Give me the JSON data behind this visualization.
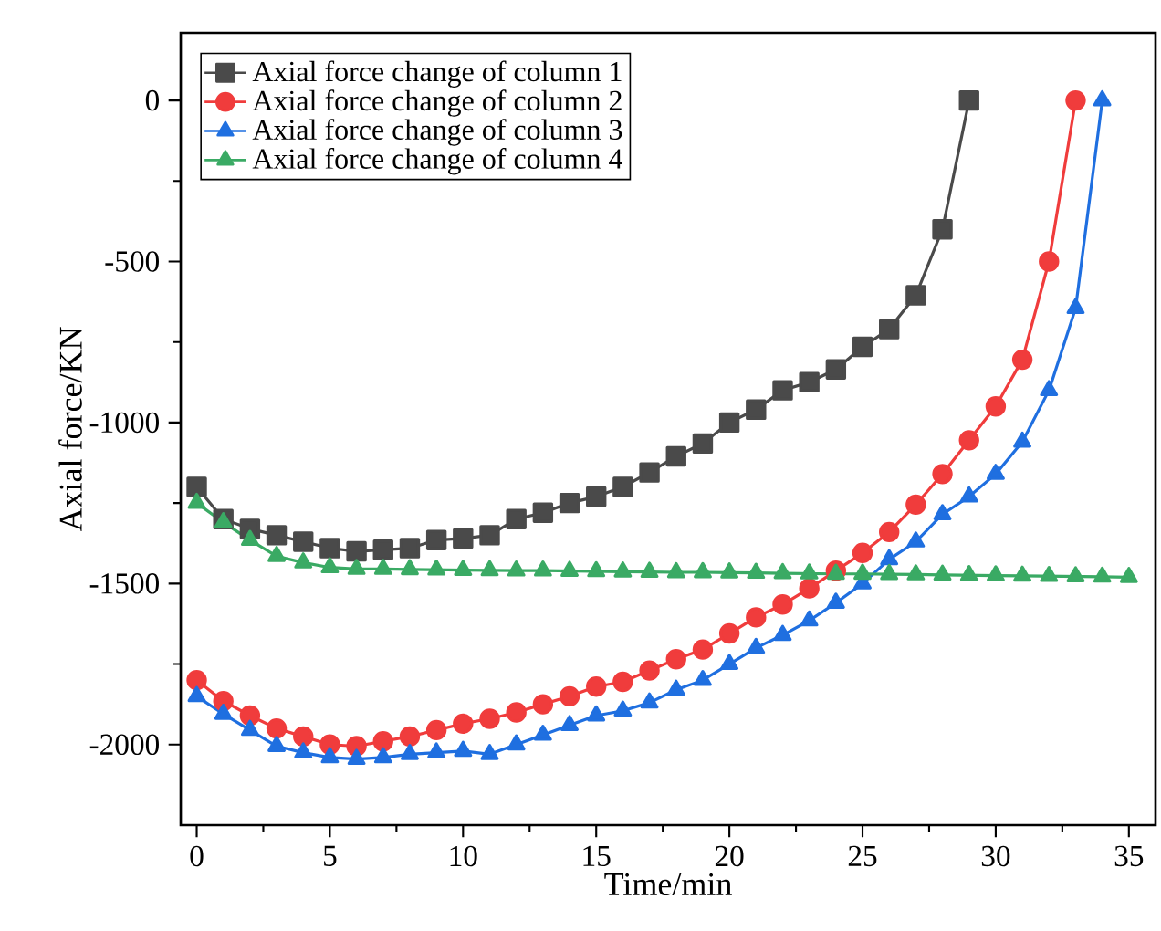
{
  "chart_data": {
    "type": "line",
    "xlabel": "Time/min",
    "ylabel": "Axial force/KN",
    "xlim": [
      -0.6,
      36
    ],
    "ylim": [
      -2250,
      210
    ],
    "xticks": [
      0,
      5,
      10,
      15,
      20,
      25,
      30,
      35
    ],
    "yticks": [
      -2000,
      -1500,
      -1000,
      -500,
      0
    ],
    "grid": false,
    "legend": "top left",
    "line_style": "solid",
    "series": [
      {
        "name": "Axial force change of column 1",
        "color": "#4a4a4a",
        "marker": "square",
        "x": [
          0,
          1,
          2,
          3,
          4,
          5,
          6,
          7,
          8,
          9,
          10,
          11,
          12,
          13,
          14,
          15,
          16,
          17,
          18,
          19,
          20,
          21,
          22,
          23,
          24,
          25,
          26,
          27,
          28,
          29
        ],
        "values": [
          -1200,
          -1300,
          -1330,
          -1350,
          -1370,
          -1390,
          -1400,
          -1395,
          -1390,
          -1365,
          -1360,
          -1350,
          -1300,
          -1280,
          -1250,
          -1230,
          -1200,
          -1155,
          -1105,
          -1065,
          -1000,
          -960,
          -900,
          -875,
          -835,
          -765,
          -710,
          -605,
          -400,
          0
        ]
      },
      {
        "name": "Axial force change of column 2",
        "color": "#f03c3c",
        "marker": "circle",
        "x": [
          0,
          1,
          2,
          3,
          4,
          5,
          6,
          7,
          8,
          9,
          10,
          11,
          12,
          13,
          14,
          15,
          16,
          17,
          18,
          19,
          20,
          21,
          22,
          23,
          24,
          25,
          26,
          27,
          28,
          29,
          30,
          31,
          32,
          33
        ],
        "values": [
          -1800,
          -1865,
          -1910,
          -1950,
          -1975,
          -2000,
          -2005,
          -1990,
          -1975,
          -1955,
          -1935,
          -1920,
          -1900,
          -1875,
          -1850,
          -1820,
          -1805,
          -1770,
          -1735,
          -1705,
          -1655,
          -1605,
          -1565,
          -1515,
          -1460,
          -1405,
          -1340,
          -1255,
          -1160,
          -1055,
          -950,
          -805,
          -500,
          0
        ]
      },
      {
        "name": "Axial force change of column 3",
        "color": "#1f6fe0",
        "marker": "triangle",
        "x": [
          0,
          1,
          2,
          3,
          4,
          5,
          6,
          7,
          8,
          9,
          10,
          11,
          12,
          13,
          14,
          15,
          16,
          17,
          18,
          19,
          20,
          21,
          22,
          23,
          24,
          25,
          26,
          27,
          28,
          29,
          30,
          31,
          32,
          33,
          34
        ],
        "values": [
          -1850,
          -1905,
          -1955,
          -2005,
          -2025,
          -2040,
          -2045,
          -2040,
          -2030,
          -2025,
          -2020,
          -2030,
          -2000,
          -1970,
          -1940,
          -1910,
          -1895,
          -1870,
          -1830,
          -1800,
          -1750,
          -1700,
          -1660,
          -1615,
          -1560,
          -1500,
          -1425,
          -1370,
          -1285,
          -1230,
          -1160,
          -1060,
          -900,
          -645,
          0
        ]
      },
      {
        "name": "Axial force change of column 4",
        "color": "#3aaa64",
        "marker": "triangle-down",
        "x": [
          0,
          1,
          2,
          3,
          4,
          5,
          6,
          7,
          8,
          9,
          10,
          11,
          12,
          13,
          14,
          15,
          16,
          17,
          18,
          19,
          20,
          21,
          22,
          23,
          24,
          25,
          26,
          27,
          28,
          29,
          30,
          31,
          32,
          33,
          34,
          35
        ],
        "values": [
          -1250,
          -1310,
          -1365,
          -1415,
          -1435,
          -1450,
          -1455,
          -1455,
          -1456,
          -1457,
          -1458,
          -1459,
          -1460,
          -1460,
          -1461,
          -1462,
          -1463,
          -1464,
          -1465,
          -1465,
          -1466,
          -1467,
          -1468,
          -1469,
          -1470,
          -1470,
          -1471,
          -1472,
          -1473,
          -1474,
          -1475,
          -1476,
          -1477,
          -1478,
          -1479,
          -1480
        ]
      }
    ]
  }
}
